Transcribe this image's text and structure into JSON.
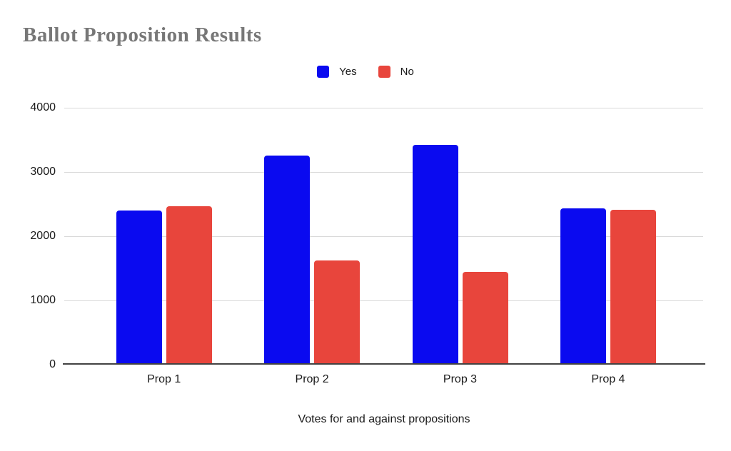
{
  "title": "Ballot Proposition Results",
  "axis_title": "Votes for and against propositions",
  "colors": {
    "yes": "#0a0af0",
    "no": "#e8453c",
    "title_gray": "#777777",
    "gridline": "#d9d9d9",
    "axis_line": "#424242",
    "text": "#1a1a1a",
    "background": "#ffffff"
  },
  "chart_data": {
    "type": "bar",
    "title": "Ballot Proposition Results",
    "xlabel": "Votes for and against propositions",
    "ylabel": "",
    "categories": [
      "Prop 1",
      "Prop 2",
      "Prop 3",
      "Prop 4"
    ],
    "series": [
      {
        "name": "Yes",
        "color": "#0a0af0",
        "values": [
          2380,
          3230,
          3400,
          2410
        ]
      },
      {
        "name": "No",
        "color": "#e8453c",
        "values": [
          2440,
          1600,
          1420,
          2390
        ]
      }
    ],
    "ylim": [
      0,
      4000
    ],
    "yticks": [
      0,
      1000,
      2000,
      3000,
      4000
    ],
    "grid": true,
    "legend_position": "top-center"
  }
}
